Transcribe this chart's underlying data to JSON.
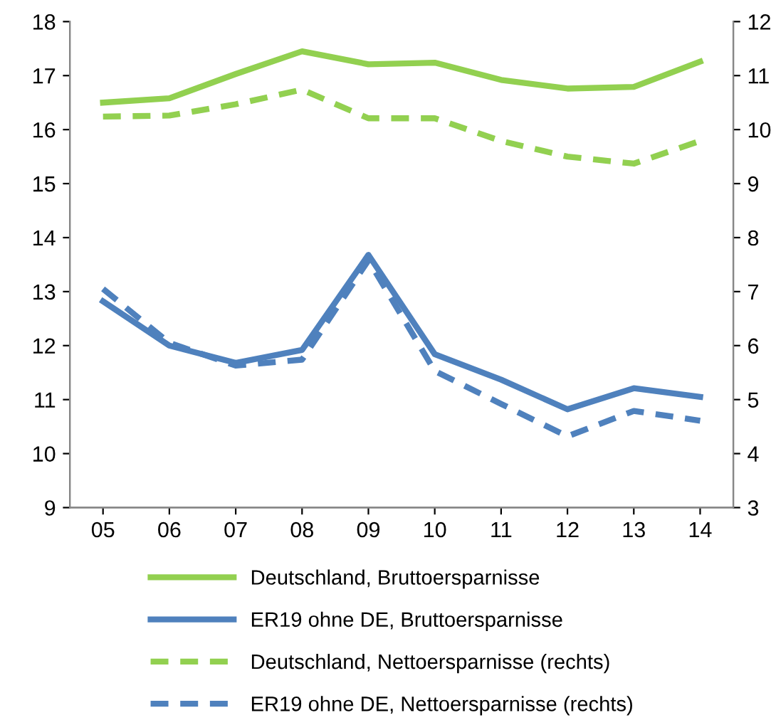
{
  "chart_data": {
    "type": "line",
    "categories": [
      "05",
      "06",
      "07",
      "08",
      "09",
      "10",
      "11",
      "12",
      "13",
      "14"
    ],
    "ylim": [
      9,
      18
    ],
    "yticks": [
      9,
      10,
      11,
      12,
      13,
      14,
      15,
      16,
      17,
      18
    ],
    "y2lim": [
      3,
      12
    ],
    "y2ticks": [
      3,
      4,
      5,
      6,
      7,
      8,
      9,
      10,
      11,
      12
    ],
    "grid": false,
    "legend": "bottom",
    "marker": "none",
    "series": [
      {
        "name": "Deutschland, Bruttoersparnisse",
        "color": "#92d050",
        "line_style": "solid",
        "values": [
          16.5,
          16.58,
          17.03,
          17.45,
          17.21,
          17.24,
          16.92,
          16.76,
          16.79,
          17.26
        ]
      },
      {
        "name": "ER19 ohne DE, Bruttoersparnisse",
        "color": "#4f81bd",
        "line_style": "solid",
        "values": [
          12.82,
          12.0,
          11.68,
          11.92,
          13.68,
          11.84,
          11.37,
          10.82,
          11.21,
          11.05
        ]
      },
      {
        "name": "Deutschland, Nettoersparnisse (rechts)",
        "color": "#92d050",
        "line_style": "dashed",
        "axis": "y2",
        "values": [
          10.24,
          10.26,
          10.47,
          10.74,
          10.21,
          10.21,
          9.79,
          9.5,
          9.37,
          9.79
        ]
      },
      {
        "name": "ER19 ohne DE, Nettoersparnisse (rechts)",
        "color": "#4f81bd",
        "line_style": "dashed",
        "axis": "y2",
        "values": [
          7.05,
          6.05,
          5.63,
          5.74,
          7.58,
          5.53,
          4.92,
          4.32,
          4.79,
          4.61
        ]
      }
    ]
  }
}
